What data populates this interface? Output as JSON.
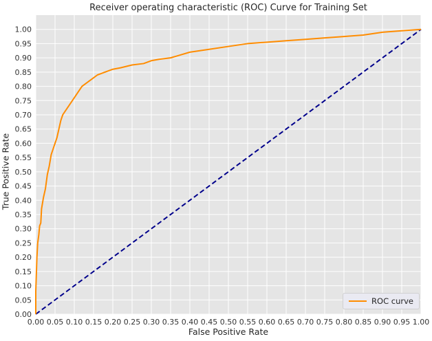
{
  "chart_data": {
    "type": "line",
    "title": "Receiver operating characteristic (ROC) Curve for Training Set",
    "xlabel": "False Positive Rate",
    "ylabel": "True Positive Rate",
    "xlim": [
      0,
      1
    ],
    "ylim": [
      0,
      1.05
    ],
    "xticks": [
      "0.00",
      "0.05",
      "0.10",
      "0.15",
      "0.20",
      "0.25",
      "0.30",
      "0.35",
      "0.40",
      "0.45",
      "0.50",
      "0.55",
      "0.60",
      "0.65",
      "0.70",
      "0.75",
      "0.80",
      "0.85",
      "0.90",
      "0.95",
      "1.00"
    ],
    "yticks": [
      "0.00",
      "0.05",
      "0.10",
      "0.15",
      "0.20",
      "0.25",
      "0.30",
      "0.35",
      "0.40",
      "0.45",
      "0.50",
      "0.55",
      "0.60",
      "0.65",
      "0.70",
      "0.75",
      "0.80",
      "0.85",
      "0.90",
      "0.95",
      "1.00"
    ],
    "grid": true,
    "legend_position": "lower right",
    "series": [
      {
        "name": "ROC curve",
        "color": "#ff8c00",
        "style": "solid",
        "x": [
          0.0,
          0.0,
          0.003,
          0.005,
          0.008,
          0.01,
          0.013,
          0.015,
          0.02,
          0.025,
          0.03,
          0.035,
          0.04,
          0.045,
          0.05,
          0.055,
          0.06,
          0.065,
          0.07,
          0.075,
          0.08,
          0.085,
          0.09,
          0.1,
          0.11,
          0.12,
          0.13,
          0.14,
          0.15,
          0.16,
          0.17,
          0.18,
          0.2,
          0.22,
          0.25,
          0.28,
          0.3,
          0.32,
          0.35,
          0.4,
          0.45,
          0.5,
          0.55,
          0.6,
          0.65,
          0.7,
          0.75,
          0.8,
          0.85,
          0.9,
          0.95,
          1.0
        ],
        "y": [
          0.0,
          0.08,
          0.2,
          0.25,
          0.28,
          0.31,
          0.32,
          0.37,
          0.41,
          0.44,
          0.49,
          0.52,
          0.56,
          0.58,
          0.6,
          0.62,
          0.65,
          0.68,
          0.7,
          0.71,
          0.72,
          0.73,
          0.74,
          0.76,
          0.78,
          0.8,
          0.81,
          0.82,
          0.83,
          0.84,
          0.845,
          0.85,
          0.86,
          0.865,
          0.875,
          0.88,
          0.89,
          0.895,
          0.9,
          0.92,
          0.93,
          0.94,
          0.95,
          0.955,
          0.96,
          0.965,
          0.97,
          0.975,
          0.98,
          0.99,
          0.995,
          1.0
        ]
      },
      {
        "name": "",
        "color": "#00008b",
        "style": "dashed",
        "x": [
          0,
          1
        ],
        "y": [
          0,
          1
        ]
      }
    ],
    "colors": {
      "plot_background": "#e5e5e5",
      "grid": "#ffffff"
    }
  }
}
